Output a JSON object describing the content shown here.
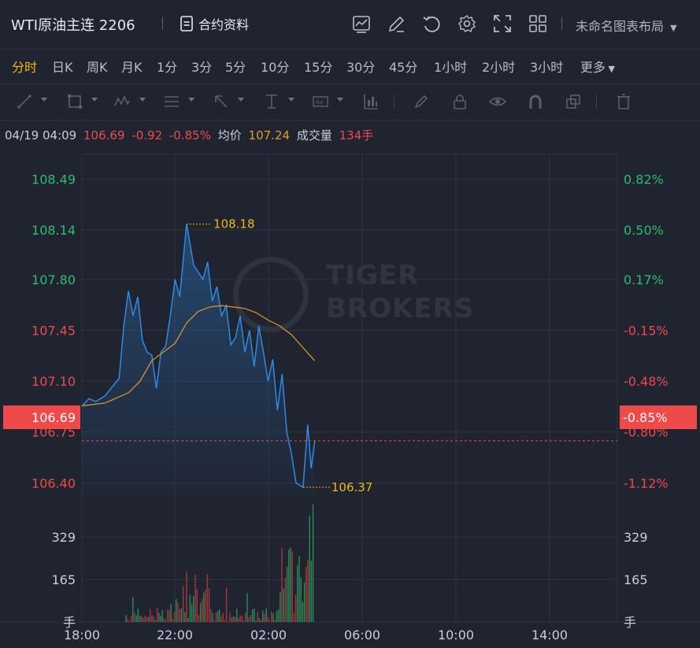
{
  "header": {
    "title": "WTI原油主连 2206",
    "contract_info_label": "合约资料",
    "layout_name": "未命名图表布局"
  },
  "periods": [
    {
      "label": "分时",
      "active": true
    },
    {
      "label": "日K"
    },
    {
      "label": "周K"
    },
    {
      "label": "月K"
    },
    {
      "label": "1分"
    },
    {
      "label": "3分"
    },
    {
      "label": "5分"
    },
    {
      "label": "10分"
    },
    {
      "label": "15分"
    },
    {
      "label": "30分"
    },
    {
      "label": "45分"
    },
    {
      "label": "1小时"
    },
    {
      "label": "2小时"
    },
    {
      "label": "3小时"
    },
    {
      "label": "更多"
    }
  ],
  "info": {
    "datetime": "04/19 04:09",
    "price": "106.69",
    "change": "-0.92",
    "change_pct": "-0.85%",
    "avg_label": "均价",
    "avg_value": "107.24",
    "volume_label": "成交量",
    "volume_value": "134手"
  },
  "current": {
    "price_tag": "106.69",
    "pct_tag": "-0.85%"
  },
  "watermark": {
    "line1": "TIGER",
    "line2": "BROKERS"
  },
  "colors": {
    "up": "#2ebd6b",
    "down": "#ef4a4a",
    "line": "#2f8ae5",
    "avg": "#e39b2a",
    "accent": "#f0b90b"
  },
  "chart_data": {
    "type": "line",
    "y_axis_left": [
      "108.49",
      "108.14",
      "107.80",
      "107.45",
      "107.10",
      "106.75",
      "106.40"
    ],
    "y_axis_right": [
      "0.82%",
      "0.50%",
      "0.17%",
      "-0.15%",
      "-0.48%",
      "-0.80%",
      "-1.12%"
    ],
    "ylim": [
      106.31,
      108.66
    ],
    "prev_close": 107.61,
    "high_label": "108.18",
    "low_label": "106.37",
    "x_ticks": [
      "18:00",
      "22:00",
      "02:00",
      "06:00",
      "10:00",
      "14:00"
    ],
    "x_range_hours": [
      0,
      23
    ],
    "price_series": {
      "name": "price",
      "t": [
        0,
        0.3,
        0.6,
        1.0,
        1.3,
        1.6,
        1.8,
        2.0,
        2.2,
        2.4,
        2.6,
        2.8,
        3.0,
        3.2,
        3.4,
        3.6,
        3.8,
        4.0,
        4.2,
        4.5,
        4.8,
        5.0,
        5.2,
        5.4,
        5.6,
        5.8,
        6.0,
        6.2,
        6.4,
        6.6,
        6.8,
        7.0,
        7.2,
        7.4,
        7.6,
        7.8,
        8.0,
        8.2,
        8.4,
        8.6,
        8.8,
        9.0,
        9.2,
        9.5,
        9.7,
        9.85,
        10.0
      ],
      "values": [
        106.93,
        106.98,
        106.96,
        107.0,
        107.06,
        107.12,
        107.48,
        107.72,
        107.55,
        107.68,
        107.38,
        107.3,
        107.28,
        107.05,
        107.3,
        107.34,
        107.55,
        107.8,
        107.68,
        108.18,
        107.9,
        107.85,
        107.8,
        107.92,
        107.65,
        107.75,
        107.55,
        107.62,
        107.35,
        107.4,
        107.55,
        107.3,
        107.45,
        107.2,
        107.48,
        107.3,
        107.1,
        107.25,
        106.9,
        107.15,
        106.75,
        106.6,
        106.4,
        106.37,
        106.8,
        106.5,
        106.69
      ]
    },
    "avg_series": {
      "name": "均价",
      "t": [
        0,
        1.0,
        2.0,
        2.5,
        3.0,
        3.5,
        4.0,
        4.5,
        5.0,
        5.5,
        6.0,
        6.5,
        7.0,
        7.5,
        8.0,
        8.5,
        9.0,
        9.5,
        10.0
      ],
      "values": [
        106.93,
        106.95,
        107.02,
        107.1,
        107.24,
        107.3,
        107.36,
        107.5,
        107.58,
        107.61,
        107.62,
        107.61,
        107.6,
        107.57,
        107.52,
        107.48,
        107.42,
        107.33,
        107.24
      ]
    },
    "volume_axis": [
      "329",
      "165",
      "手"
    ],
    "volume_max": 493
  }
}
